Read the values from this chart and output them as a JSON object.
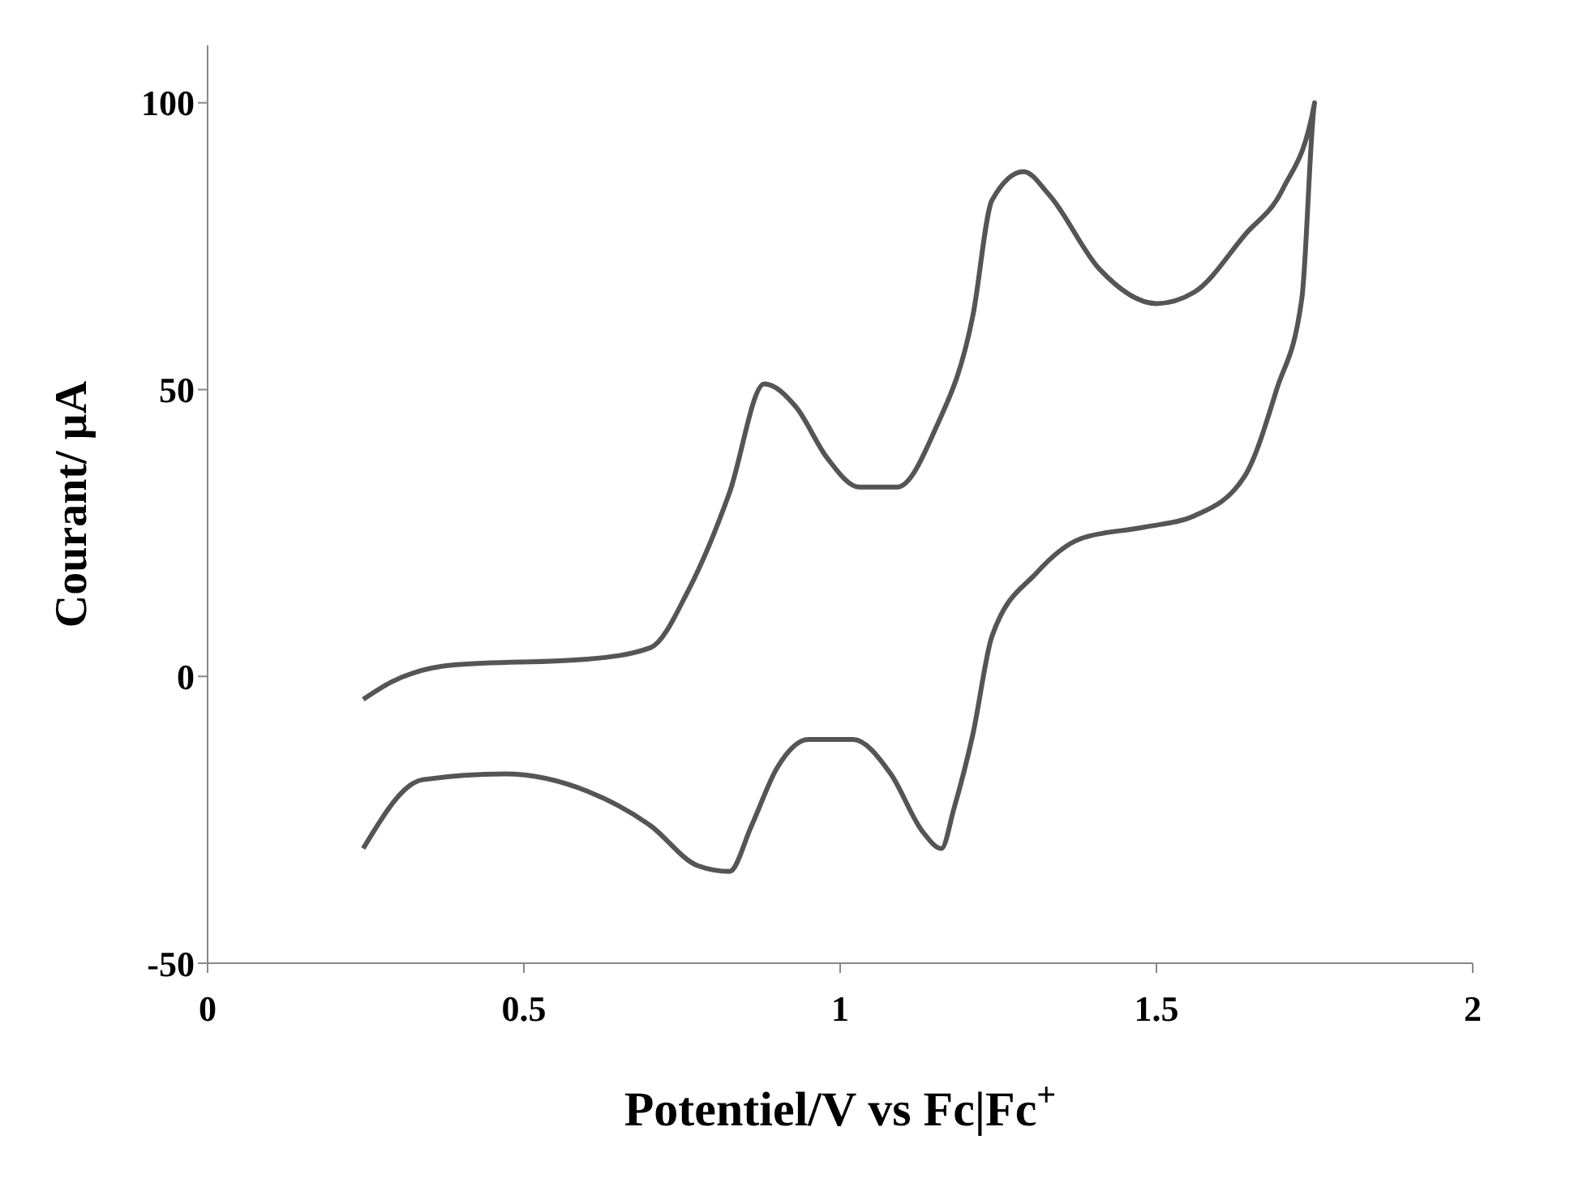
{
  "chart_data": {
    "type": "line",
    "xlabel": "Potentiel/V vs Fc|Fc$^{+}$",
    "ylabel": "Courant/ µA",
    "xlim": [
      0,
      2
    ],
    "ylim": [
      -50,
      110
    ],
    "xticks": [
      0,
      0.5,
      1,
      1.5,
      2
    ],
    "yticks": [
      -50,
      0,
      50,
      100
    ],
    "grid": false,
    "legend": false,
    "marker": "none",
    "line_style": "solid",
    "series": [
      {
        "color": "#555555",
        "x": [
          0.246,
          0.29,
          0.39,
          0.6,
          0.7,
          0.76,
          0.825,
          0.88,
          0.93,
          0.98,
          1.03,
          1.09,
          1.15,
          1.21,
          1.24,
          1.29,
          1.33,
          1.41,
          1.5,
          1.56,
          1.64,
          1.7,
          1.75,
          1.73,
          1.69,
          1.64,
          1.56,
          1.48,
          1.38,
          1.31,
          1.24,
          1.21,
          1.18,
          1.16,
          1.13,
          1.08,
          1.02,
          0.95,
          0.9,
          0.86,
          0.825,
          0.775,
          0.7,
          0.6,
          0.47,
          0.34,
          0.246
        ],
        "values": [
          -4,
          -1,
          2,
          3,
          5,
          15,
          32,
          51,
          47,
          38,
          33,
          33,
          43,
          63,
          83,
          88,
          84,
          71,
          65,
          67,
          77,
          85,
          100,
          66,
          50,
          35,
          28,
          26,
          24,
          18,
          7,
          -10,
          -23,
          -30,
          -27,
          -17,
          -11,
          -11,
          -16,
          -26,
          -34,
          -33,
          -26,
          -20,
          -17,
          -18,
          -30
        ]
      }
    ]
  }
}
